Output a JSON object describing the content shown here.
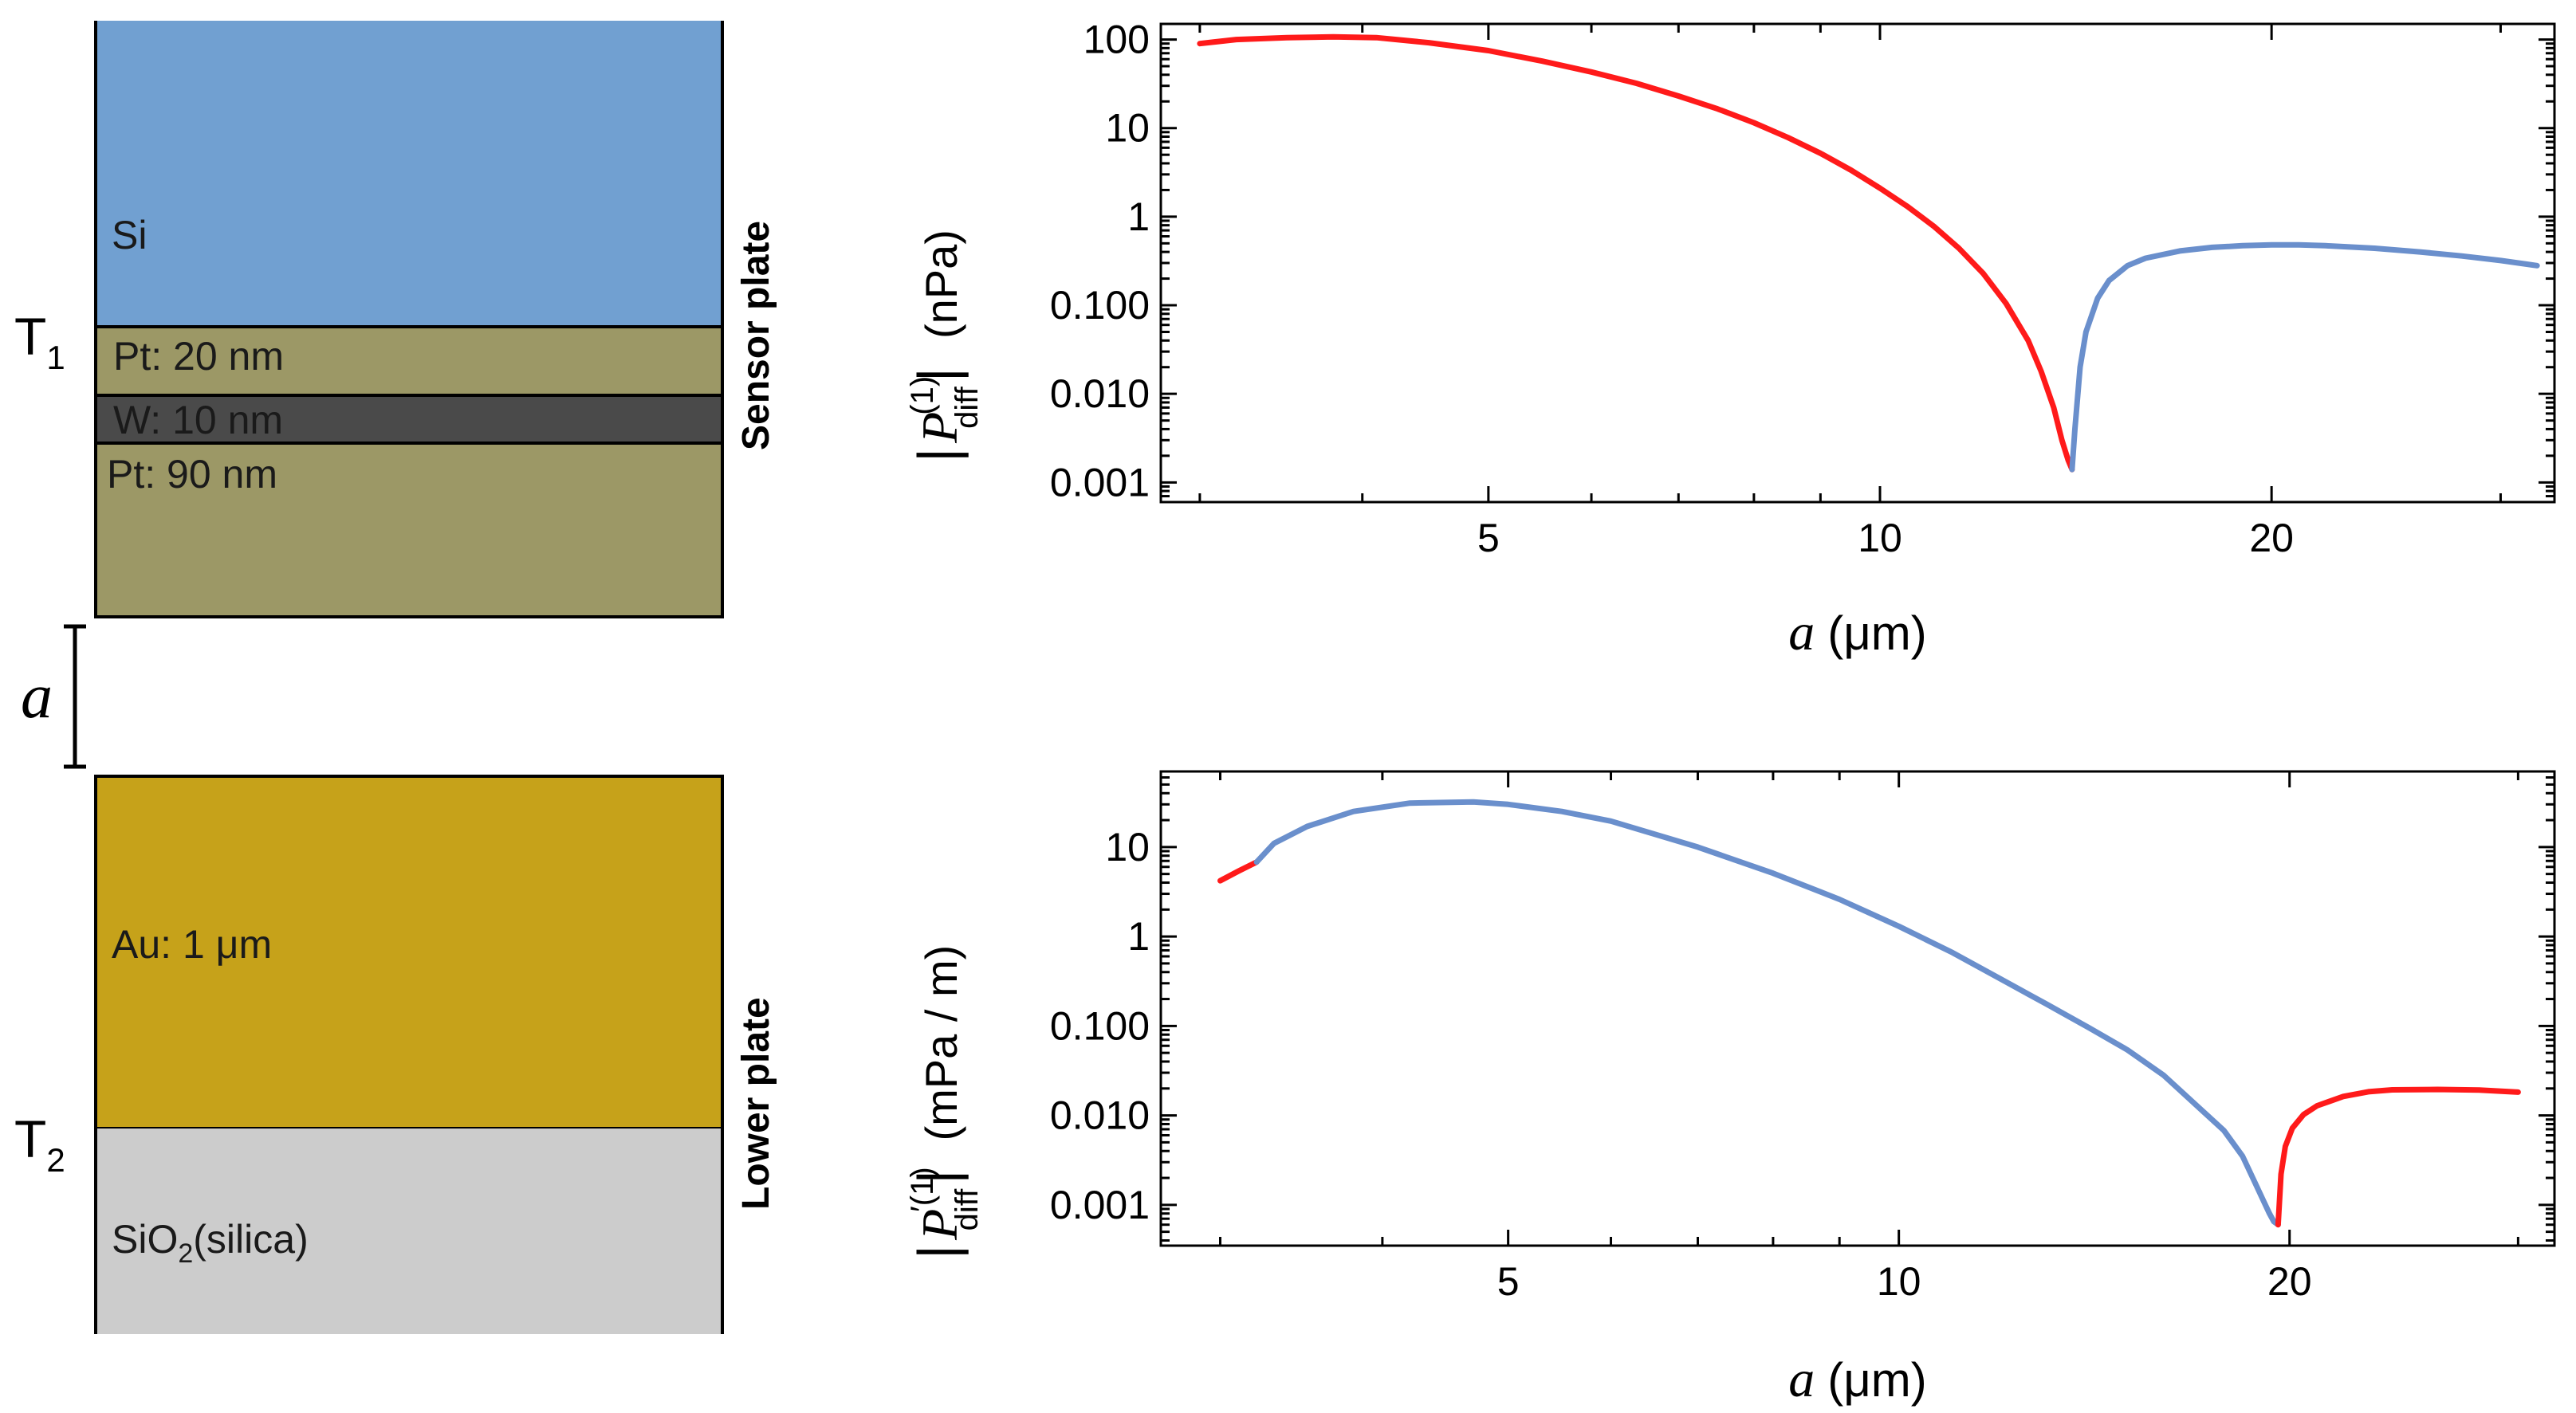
{
  "colors": {
    "si": "#71A0D1",
    "pt": "#9C9866",
    "w": "#4A4A4A",
    "au": "#C6A21A",
    "silica": "#CCCCCC",
    "negative": "#FF1A1A",
    "positive": "#6A8FCC"
  },
  "diagram": {
    "sensor_layers": [
      {
        "name": "Si",
        "label": "Si"
      },
      {
        "name": "Pt1",
        "label": "Pt:  20 nm"
      },
      {
        "name": "W",
        "label": "W:  10 nm"
      },
      {
        "name": "Pt2",
        "label": "Pt:  90 nm"
      }
    ],
    "lower_layers": [
      {
        "name": "Au",
        "label": "Au:  1 μm"
      },
      {
        "name": "SiO2",
        "label_main": "SiO",
        "label_sub": "2",
        "label_rest": "(silica)"
      }
    ],
    "t1": {
      "main": "T",
      "sub": "1"
    },
    "t2": {
      "main": "T",
      "sub": "2"
    },
    "gap_label": "a",
    "sensor_plate_label": "Sensor plate",
    "lower_plate_label": "Lower plate"
  },
  "chart_data": [
    {
      "type": "line",
      "title": "",
      "xscale": "log",
      "yscale": "log",
      "xlim": [
        2.8,
        33
      ],
      "ylim": [
        0.0006,
        150
      ],
      "xticks": [
        5,
        10,
        20
      ],
      "xtick_labels": [
        "5",
        "10",
        "20"
      ],
      "yticks": [
        100,
        10,
        1,
        0.1,
        0.01,
        0.001
      ],
      "ytick_labels": [
        "100",
        "10",
        "1",
        "0.100",
        "0.010",
        "0.001"
      ],
      "xlabel": {
        "var": "a",
        "unit": "(μm)"
      },
      "ylabel": {
        "sym": "P",
        "sup": "(1)",
        "sub": "diff",
        "unit": "(nPa)"
      },
      "series": [
        {
          "name": "negative",
          "color_key": "negative",
          "x": [
            3.0,
            3.2,
            3.5,
            3.8,
            4.1,
            4.5,
            5.0,
            5.5,
            6.0,
            6.5,
            7.0,
            7.5,
            8.0,
            8.5,
            9.0,
            9.5,
            10.0,
            10.5,
            11.0,
            11.5,
            12.0,
            12.5,
            13.0,
            13.3,
            13.6,
            13.8,
            13.95,
            14.05
          ],
          "y": [
            90,
            100,
            105,
            107,
            105,
            92,
            75,
            57,
            43,
            32,
            23,
            16.5,
            11.5,
            7.8,
            5.2,
            3.35,
            2.1,
            1.3,
            0.78,
            0.44,
            0.23,
            0.105,
            0.04,
            0.018,
            0.007,
            0.003,
            0.0018,
            0.0014
          ]
        },
        {
          "name": "positive",
          "color_key": "positive",
          "x": [
            14.05,
            14.12,
            14.25,
            14.4,
            14.7,
            15.0,
            15.5,
            16.0,
            17.0,
            18.0,
            19.0,
            20.0,
            21.0,
            22.0,
            24.0,
            26.0,
            28.0,
            30.0,
            32.0
          ],
          "y": [
            0.0014,
            0.004,
            0.02,
            0.05,
            0.12,
            0.19,
            0.28,
            0.34,
            0.41,
            0.45,
            0.47,
            0.48,
            0.48,
            0.47,
            0.44,
            0.4,
            0.36,
            0.32,
            0.28
          ]
        }
      ]
    },
    {
      "type": "line",
      "title": "",
      "xscale": "log",
      "yscale": "log",
      "xlim": [
        2.7,
        32
      ],
      "ylim": [
        0.00035,
        70
      ],
      "xticks": [
        5,
        10,
        20
      ],
      "xtick_labels": [
        "5",
        "10",
        "20"
      ],
      "yticks": [
        10,
        1,
        0.1,
        0.01,
        0.001
      ],
      "ytick_labels": [
        "10",
        "1",
        "0.100",
        "0.010",
        "0.001"
      ],
      "xlabel": {
        "var": "a",
        "unit": "(μm)"
      },
      "ylabel": {
        "sym": "P",
        "sup": "′(1)",
        "sub": "diff",
        "unit": "(mPa / m)"
      },
      "series": [
        {
          "name": "negative-low",
          "color_key": "negative",
          "x": [
            3.0,
            3.1,
            3.2
          ],
          "y": [
            4.2,
            5.4,
            6.8
          ]
        },
        {
          "name": "positive",
          "color_key": "positive",
          "x": [
            3.2,
            3.3,
            3.5,
            3.8,
            4.2,
            4.7,
            5.0,
            5.5,
            6.0,
            7.0,
            8.0,
            9.0,
            10.0,
            11.0,
            12.0,
            13.0,
            14.0,
            15.0,
            16.0,
            17.0,
            17.8,
            18.4,
            18.8,
            19.1,
            19.3,
            19.45,
            19.6
          ],
          "y": [
            6.8,
            11,
            17,
            25,
            31,
            32,
            30,
            25,
            19.5,
            10,
            5.1,
            2.6,
            1.3,
            0.66,
            0.33,
            0.175,
            0.096,
            0.054,
            0.028,
            0.0125,
            0.0068,
            0.0035,
            0.0018,
            0.0011,
            0.0008,
            0.00065,
            0.0006
          ]
        },
        {
          "name": "negative-high",
          "color_key": "negative",
          "x": [
            19.6,
            19.7,
            19.85,
            20.1,
            20.5,
            21.0,
            22.0,
            23.0,
            24.0,
            26.0,
            28.0,
            30.0
          ],
          "y": [
            0.0006,
            0.0022,
            0.0045,
            0.0072,
            0.0102,
            0.0128,
            0.0163,
            0.0184,
            0.0193,
            0.0195,
            0.0192,
            0.0182
          ]
        }
      ]
    }
  ]
}
